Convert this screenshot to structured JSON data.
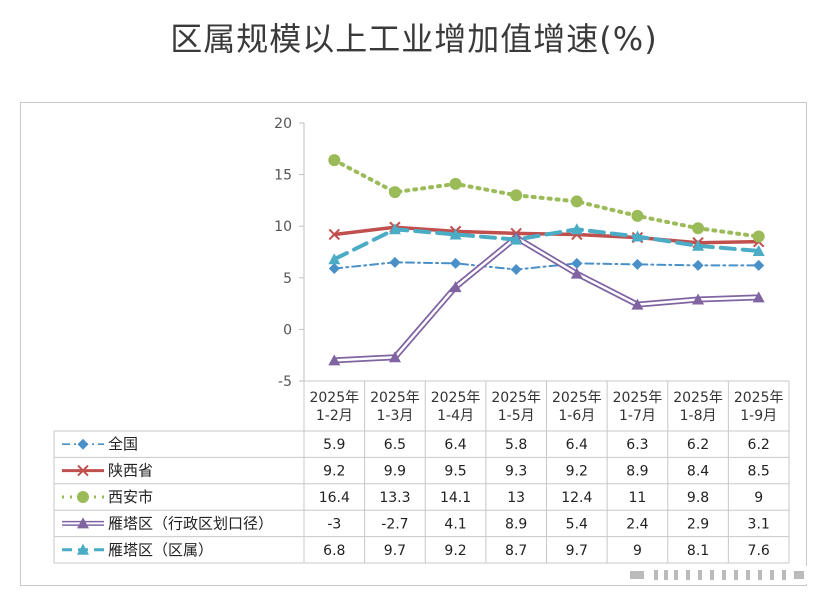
{
  "chart_data": {
    "type": "line",
    "title": "区属规模以上工业增加值增速(%)",
    "categories": [
      "2025年\n1-2月",
      "2025年\n1-3月",
      "2025年\n1-4月",
      "2025年\n1-5月",
      "2025年\n1-6月",
      "2025年\n1-7月",
      "2025年\n1-8月",
      "2025年\n1-9月"
    ],
    "ylim": [
      -5,
      20
    ],
    "yticks": [
      -5,
      0,
      5,
      10,
      15,
      20
    ],
    "legend": "data-table-left",
    "series": [
      {
        "name": "全国",
        "values": [
          5.9,
          6.5,
          6.4,
          5.8,
          6.4,
          6.3,
          6.2,
          6.2
        ],
        "labels": [
          "5.9",
          "6.5",
          "6.4",
          "5.8",
          "6.4",
          "6.3",
          "6.2",
          "6.2"
        ],
        "color": "#4a90c8",
        "marker": "diamond",
        "dash": "dashdot"
      },
      {
        "name": "陕西省",
        "values": [
          9.2,
          9.9,
          9.5,
          9.3,
          9.2,
          8.9,
          8.4,
          8.5
        ],
        "labels": [
          "9.2",
          "9.9",
          "9.5",
          "9.3",
          "9.2",
          "8.9",
          "8.4",
          "8.5"
        ],
        "color": "#c0504d",
        "marker": "x",
        "dash": "solid"
      },
      {
        "name": "西安市",
        "values": [
          16.4,
          13.3,
          14.1,
          13,
          12.4,
          11,
          9.8,
          9
        ],
        "labels": [
          "16.4",
          "13.3",
          "14.1",
          "13",
          "12.4",
          "11",
          "9.8",
          "9"
        ],
        "color": "#9bbb59",
        "marker": "circle",
        "dash": "dot"
      },
      {
        "name": "雁塔区（行政区划口径）",
        "values": [
          -3,
          -2.7,
          4.1,
          8.9,
          5.4,
          2.4,
          2.9,
          3.1
        ],
        "labels": [
          "-3",
          "-2.7",
          "4.1",
          "8.9",
          "5.4",
          "2.4",
          "2.9",
          "3.1"
        ],
        "color": "#8064a2",
        "marker": "triangle",
        "dash": "double"
      },
      {
        "name": "雁塔区（区属）",
        "values": [
          6.8,
          9.7,
          9.2,
          8.7,
          9.7,
          9,
          8.1,
          7.6
        ],
        "labels": [
          "6.8",
          "9.7",
          "9.2",
          "8.7",
          "9.7",
          "9",
          "8.1",
          "7.6"
        ],
        "color": "#4bacc6",
        "marker": "triangle",
        "dash": "longdash"
      }
    ]
  }
}
